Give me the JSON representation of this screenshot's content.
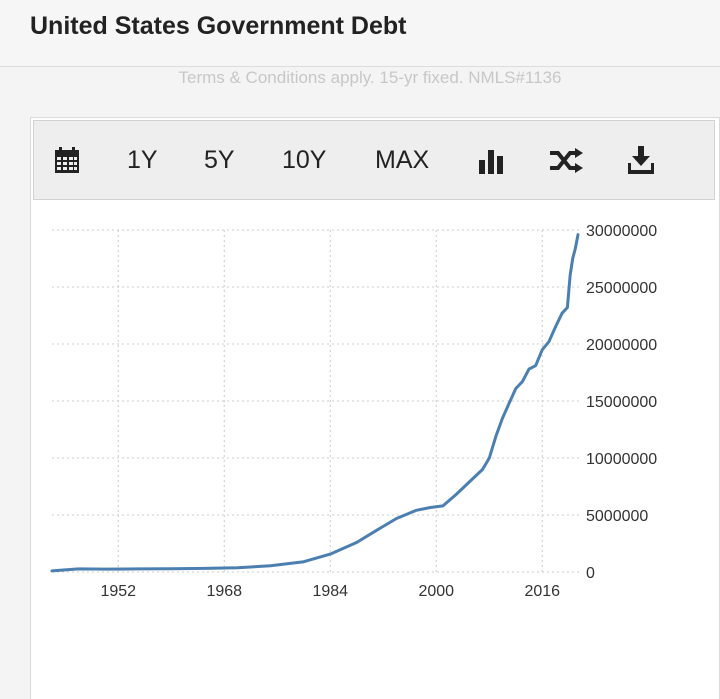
{
  "header": {
    "title": "United States Government Debt"
  },
  "disclaimer": "Terms & Conditions apply. 15-yr fixed. NMLS#1136",
  "toolbar": {
    "buttons": [
      "1Y",
      "5Y",
      "10Y",
      "MAX"
    ],
    "icons": [
      "calendar-icon",
      "bar-chart-icon",
      "shuffle-icon",
      "download-icon"
    ]
  },
  "colors": {
    "line": "#4a7fb0",
    "grid": "#cccccc"
  },
  "chart_data": {
    "type": "line",
    "title": "",
    "xlabel": "",
    "ylabel": "",
    "xlim": [
      1942,
      2022
    ],
    "ylim": [
      0,
      30000000
    ],
    "x_ticks": [
      "1952",
      "1968",
      "1984",
      "2000",
      "2016"
    ],
    "y_ticks": [
      "0",
      "5000000",
      "10000000",
      "15000000",
      "20000000",
      "25000000",
      "30000000"
    ],
    "grid": true,
    "series": [
      {
        "x": [
          1942,
          1946,
          1950,
          1955,
          1960,
          1965,
          1970,
          1975,
          1980,
          1984,
          1988,
          1991,
          1994,
          1997,
          1999,
          2001,
          2003,
          2005,
          2007,
          2008,
          2009,
          2010,
          2011,
          2012,
          2013,
          2014,
          2015,
          2016,
          2017,
          2018,
          2019,
          2019.8,
          2020.2,
          2020.6,
          2021,
          2021.4
        ],
        "y": [
          100000,
          270000,
          257000,
          274000,
          290000,
          320000,
          380000,
          540000,
          900000,
          1570000,
          2600000,
          3660000,
          4690000,
          5410000,
          5650000,
          5800000,
          6800000,
          7900000,
          9000000,
          10000000,
          11900000,
          13500000,
          14800000,
          16100000,
          16700000,
          17800000,
          18100000,
          19500000,
          20200000,
          21500000,
          22700000,
          23200000,
          26000000,
          27500000,
          28400000,
          29600000
        ]
      }
    ]
  }
}
